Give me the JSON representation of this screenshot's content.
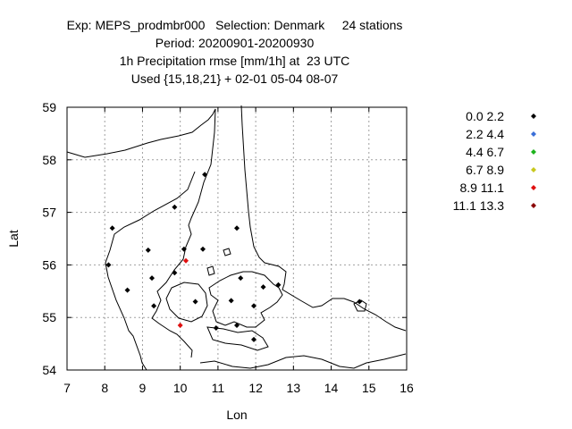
{
  "chart_data": {
    "type": "scatter",
    "title_lines": [
      "Exp: MEPS_prodmbr000   Selection: Denmark     24 stations",
      "Period: 20200901-20200930",
      "1h Precipitation rmse [mm/1h] at  23 UTC",
      "Used {15,18,21} + 02-01 05-04 08-07"
    ],
    "xlabel": "Lon",
    "ylabel": "Lat",
    "xlim": [
      7,
      16
    ],
    "ylim": [
      54,
      59
    ],
    "xticks": [
      "7",
      "8",
      "9",
      "10",
      "11",
      "12",
      "13",
      "14",
      "15",
      "16"
    ],
    "yticks": [
      "54",
      "55",
      "56",
      "57",
      "58",
      "59"
    ],
    "grid": true,
    "legend_placement": "right",
    "legend": [
      {
        "label": "0.0 2.2",
        "color": "#000000"
      },
      {
        "label": "2.2 4.4",
        "color": "#3a6fd8"
      },
      {
        "label": "4.4 6.7",
        "color": "#1db31d"
      },
      {
        "label": "6.7 8.9",
        "color": "#c8c81e"
      },
      {
        "label": "8.9 11.1",
        "color": "#e01010"
      },
      {
        "label": "11.1 13.3",
        "color": "#8b0000"
      }
    ],
    "points": [
      {
        "lon": 10.65,
        "lat": 57.72,
        "bin": 0
      },
      {
        "lon": 9.85,
        "lat": 57.1,
        "bin": 0
      },
      {
        "lon": 8.2,
        "lat": 56.7,
        "bin": 0
      },
      {
        "lon": 11.5,
        "lat": 56.7,
        "bin": 0
      },
      {
        "lon": 9.15,
        "lat": 56.28,
        "bin": 0
      },
      {
        "lon": 10.1,
        "lat": 56.3,
        "bin": 0
      },
      {
        "lon": 10.6,
        "lat": 56.3,
        "bin": 0
      },
      {
        "lon": 10.15,
        "lat": 56.08,
        "bin": 4
      },
      {
        "lon": 8.1,
        "lat": 56.0,
        "bin": 0
      },
      {
        "lon": 9.85,
        "lat": 55.85,
        "bin": 0
      },
      {
        "lon": 9.25,
        "lat": 55.75,
        "bin": 0
      },
      {
        "lon": 11.6,
        "lat": 55.75,
        "bin": 0
      },
      {
        "lon": 12.6,
        "lat": 55.62,
        "bin": 0
      },
      {
        "lon": 12.2,
        "lat": 55.58,
        "bin": 0
      },
      {
        "lon": 8.6,
        "lat": 55.52,
        "bin": 0
      },
      {
        "lon": 11.35,
        "lat": 55.32,
        "bin": 0
      },
      {
        "lon": 10.4,
        "lat": 55.3,
        "bin": 0
      },
      {
        "lon": 9.3,
        "lat": 55.22,
        "bin": 0
      },
      {
        "lon": 11.95,
        "lat": 55.22,
        "bin": 0
      },
      {
        "lon": 14.75,
        "lat": 55.3,
        "bin": 0
      },
      {
        "lon": 10.0,
        "lat": 54.85,
        "bin": 4
      },
      {
        "lon": 10.95,
        "lat": 54.8,
        "bin": 0
      },
      {
        "lon": 11.5,
        "lat": 54.85,
        "bin": 0
      },
      {
        "lon": 11.95,
        "lat": 54.58,
        "bin": 0
      }
    ]
  }
}
